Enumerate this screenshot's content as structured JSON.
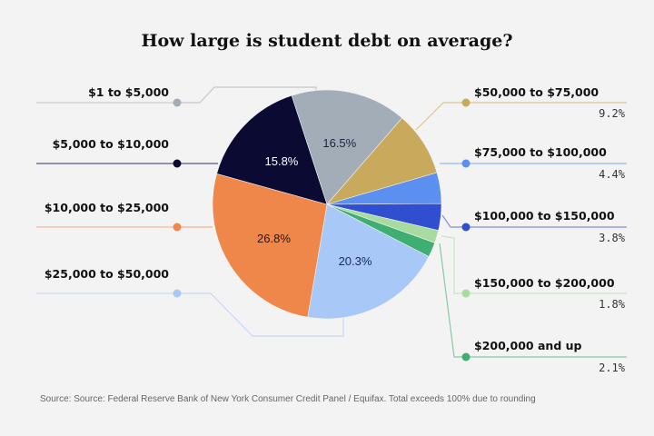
{
  "chart_data": {
    "type": "pie",
    "title": "How large is student debt on average?",
    "slices": [
      {
        "label": "$1 to $5,000",
        "value": 16.5,
        "display": "16.5%",
        "color": "#a3adb8"
      },
      {
        "label": "$50,000 to $75,000",
        "value": 9.2,
        "display": "9.2%",
        "color": "#c9a95c"
      },
      {
        "label": "$75,000 to $100,000",
        "value": 4.4,
        "display": "4.4%",
        "color": "#5b8ff0"
      },
      {
        "label": "$100,000 to $150,000",
        "value": 3.8,
        "display": "3.8%",
        "color": "#2f4fd0"
      },
      {
        "label": "$150,000 to $200,000",
        "value": 1.8,
        "display": "1.8%",
        "color": "#a8dba0"
      },
      {
        "label": "$200,000 and up",
        "value": 2.1,
        "display": "2.1%",
        "color": "#3fae72"
      },
      {
        "label": "$25,000 to $50,000",
        "value": 20.3,
        "display": "20.3%",
        "color": "#a8c8f8"
      },
      {
        "label": "$10,000 to $25,000",
        "value": 26.8,
        "display": "26.8%",
        "color": "#f0874a"
      },
      {
        "label": "$5,000 to $10,000",
        "value": 15.8,
        "display": "15.8%",
        "color": "#0a0a33"
      }
    ],
    "source": "Source: Source: Federal Reserve Bank of New York Consumer Credit Panel / Equifax. Total exceeds 100% due to rounding"
  }
}
